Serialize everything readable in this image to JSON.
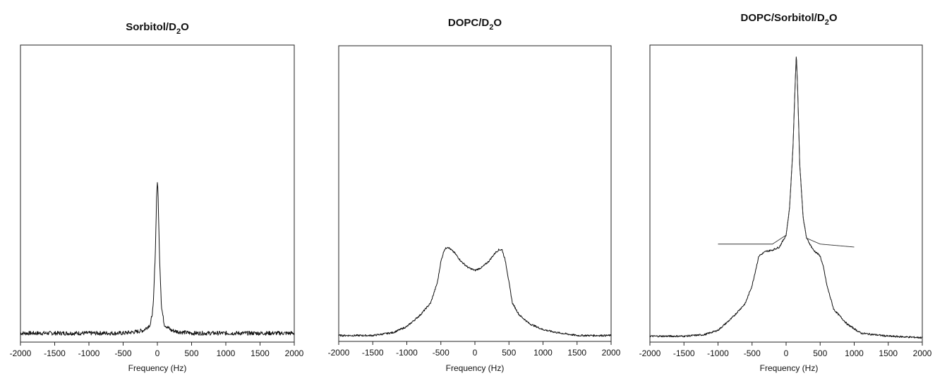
{
  "figure": {
    "panels": [
      {
        "id": "sorbitol",
        "title_main": "Sorbitol/D",
        "title_sub": "2",
        "title_tail": "O",
        "xlabel": "Frequency (Hz)"
      },
      {
        "id": "dopc",
        "title_main": "DOPC/D",
        "title_sub": "2",
        "title_tail": "O",
        "xlabel": "Frequency (Hz)"
      },
      {
        "id": "dopc-sorbitol",
        "title_main": "DOPC/Sorbitol/D",
        "title_sub": "2",
        "title_tail": "O",
        "xlabel": "Frequency (Hz)"
      }
    ]
  },
  "chart_data": [
    {
      "type": "line",
      "title": "Sorbitol/D2O",
      "xlabel": "Frequency (Hz)",
      "ylabel": "",
      "xlim": [
        -2000,
        2000
      ],
      "ylim": [
        0,
        1
      ],
      "xticks": [
        "-2000",
        "-1500",
        "-1000",
        "-500",
        "0",
        "500",
        "1000",
        "1500",
        "2000"
      ],
      "grid": false,
      "series": [
        {
          "x": [
            -2000,
            -1500,
            -1000,
            -500,
            -300,
            -200,
            -100,
            -60,
            -30,
            -10,
            0,
            10,
            30,
            60,
            100,
            200,
            300,
            500,
            1000,
            1500,
            2000
          ],
          "y": [
            0.03,
            0.03,
            0.03,
            0.03,
            0.035,
            0.04,
            0.06,
            0.12,
            0.3,
            0.5,
            0.54,
            0.5,
            0.3,
            0.12,
            0.06,
            0.04,
            0.035,
            0.03,
            0.03,
            0.03,
            0.03
          ]
        }
      ]
    },
    {
      "type": "line",
      "title": "DOPC/D2O",
      "xlabel": "Frequency (Hz)",
      "ylabel": "",
      "xlim": [
        -2000,
        2000
      ],
      "ylim": [
        0,
        1
      ],
      "xticks": [
        "-2000",
        "-1500",
        "-1000",
        "-500",
        "0",
        "500",
        "1000",
        "1500",
        "2000"
      ],
      "grid": false,
      "series": [
        {
          "x": [
            -2000,
            -1500,
            -1200,
            -1000,
            -800,
            -650,
            -550,
            -500,
            -450,
            -400,
            -300,
            -200,
            -100,
            0,
            100,
            200,
            300,
            350,
            400,
            450,
            500,
            550,
            650,
            800,
            1000,
            1200,
            1500,
            2000
          ],
          "y": [
            0.02,
            0.02,
            0.03,
            0.05,
            0.09,
            0.13,
            0.2,
            0.27,
            0.31,
            0.32,
            0.3,
            0.27,
            0.25,
            0.24,
            0.25,
            0.27,
            0.3,
            0.31,
            0.31,
            0.27,
            0.2,
            0.13,
            0.09,
            0.06,
            0.04,
            0.03,
            0.02,
            0.02
          ]
        }
      ]
    },
    {
      "type": "line",
      "title": "DOPC/Sorbitol/D2O",
      "xlabel": "Frequency (Hz)",
      "ylabel": "",
      "xlim": [
        -2000,
        2000
      ],
      "ylim": [
        0,
        1
      ],
      "xticks": [
        "-2000",
        "-1500",
        "-1000",
        "-500",
        "0",
        "500",
        "1000",
        "1500",
        "2000"
      ],
      "grid": false,
      "series": [
        {
          "x": [
            -2000,
            -1500,
            -1200,
            -1000,
            -800,
            -600,
            -500,
            -450,
            -400,
            -300,
            -200,
            -100,
            0,
            50,
            100,
            130,
            150,
            170,
            200,
            250,
            300,
            400,
            500,
            550,
            600,
            700,
            900,
            1100,
            1500,
            2000
          ],
          "y": [
            0.02,
            0.02,
            0.025,
            0.04,
            0.08,
            0.13,
            0.19,
            0.24,
            0.29,
            0.305,
            0.31,
            0.32,
            0.36,
            0.45,
            0.65,
            0.85,
            0.97,
            0.85,
            0.6,
            0.42,
            0.35,
            0.31,
            0.29,
            0.25,
            0.19,
            0.11,
            0.06,
            0.03,
            0.02,
            0.015
          ]
        },
        {
          "x": [
            -1000,
            -500,
            -200,
            0,
            50,
            100,
            130,
            150,
            170,
            200,
            250,
            300,
            500,
            1000
          ],
          "y": [
            0.33,
            0.33,
            0.33,
            0.36,
            0.45,
            0.65,
            0.85,
            0.97,
            0.85,
            0.6,
            0.42,
            0.35,
            0.33,
            0.32
          ]
        }
      ]
    }
  ]
}
